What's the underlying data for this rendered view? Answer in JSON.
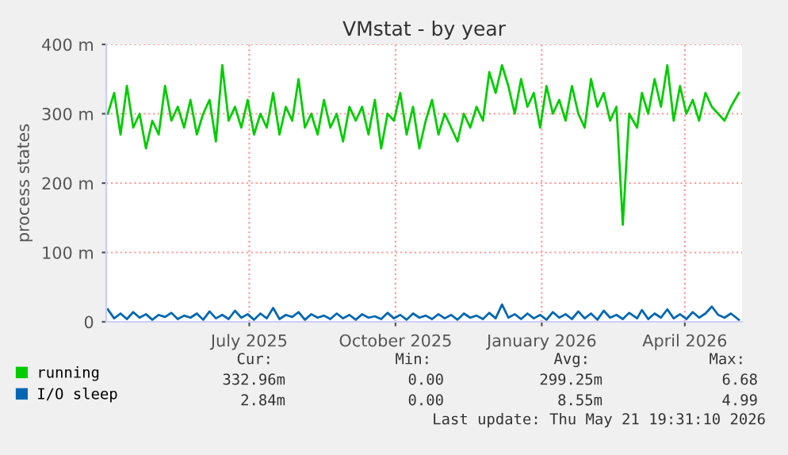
{
  "chart_data": {
    "type": "line",
    "title": "VMstat - by year",
    "ylabel": "process states",
    "x": [
      "2025-04-18",
      "2025-04-22",
      "2025-04-26",
      "2025-04-30",
      "2025-05-04",
      "2025-05-08",
      "2025-05-12",
      "2025-05-16",
      "2025-05-20",
      "2025-05-24",
      "2025-05-28",
      "2025-06-01",
      "2025-06-05",
      "2025-06-09",
      "2025-06-13",
      "2025-06-17",
      "2025-06-21",
      "2025-06-25",
      "2025-06-29",
      "2025-07-03",
      "2025-07-07",
      "2025-07-11",
      "2025-07-15",
      "2025-07-19",
      "2025-07-23",
      "2025-07-27",
      "2025-07-31",
      "2025-08-04",
      "2025-08-08",
      "2025-08-12",
      "2025-08-16",
      "2025-08-20",
      "2025-08-24",
      "2025-08-28",
      "2025-09-01",
      "2025-09-05",
      "2025-09-09",
      "2025-09-13",
      "2025-09-17",
      "2025-09-21",
      "2025-09-25",
      "2025-09-29",
      "2025-10-03",
      "2025-10-07",
      "2025-10-11",
      "2025-10-15",
      "2025-10-19",
      "2025-10-23",
      "2025-10-27",
      "2025-10-31",
      "2025-11-04",
      "2025-11-08",
      "2025-11-12",
      "2025-11-16",
      "2025-11-20",
      "2025-11-24",
      "2025-11-28",
      "2025-12-02",
      "2025-12-06",
      "2025-12-10",
      "2025-12-14",
      "2025-12-18",
      "2025-12-22",
      "2025-12-26",
      "2025-12-30",
      "2026-01-03",
      "2026-01-07",
      "2026-01-11",
      "2026-01-15",
      "2026-01-19",
      "2026-01-23",
      "2026-01-27",
      "2026-01-31",
      "2026-02-04",
      "2026-02-08",
      "2026-02-12",
      "2026-02-16",
      "2026-02-20",
      "2026-02-24",
      "2026-02-28",
      "2026-03-04",
      "2026-03-08",
      "2026-03-12",
      "2026-03-17",
      "2026-03-20",
      "2026-03-24",
      "2026-03-28",
      "2026-04-01",
      "2026-04-05",
      "2026-04-09",
      "2026-04-13",
      "2026-04-17",
      "2026-04-21",
      "2026-04-25",
      "2026-04-29",
      "2026-05-03",
      "2026-05-07",
      "2026-05-11",
      "2026-05-15",
      "2026-05-20"
    ],
    "series": [
      {
        "name": "running",
        "color": "#00cc00",
        "values": [
          300,
          330,
          270,
          340,
          280,
          300,
          250,
          290,
          270,
          340,
          290,
          310,
          280,
          320,
          270,
          300,
          320,
          260,
          370,
          290,
          310,
          280,
          320,
          270,
          300,
          280,
          330,
          270,
          310,
          290,
          350,
          280,
          300,
          270,
          320,
          280,
          300,
          260,
          310,
          290,
          310,
          270,
          320,
          250,
          300,
          290,
          330,
          270,
          310,
          250,
          290,
          320,
          270,
          300,
          280,
          260,
          300,
          280,
          310,
          290,
          360,
          330,
          370,
          340,
          300,
          350,
          310,
          330,
          280,
          340,
          300,
          320,
          290,
          340,
          300,
          280,
          350,
          310,
          330,
          290,
          310,
          140,
          300,
          280,
          330,
          300,
          350,
          310,
          370,
          290,
          340,
          300,
          320,
          290,
          330,
          310,
          300,
          290,
          310,
          330
        ]
      },
      {
        "name": "I/O sleep",
        "color": "#0066b3",
        "values": [
          18,
          5,
          12,
          4,
          14,
          6,
          11,
          3,
          10,
          7,
          13,
          4,
          9,
          6,
          12,
          3,
          15,
          5,
          10,
          4,
          16,
          6,
          11,
          3,
          12,
          5,
          20,
          4,
          10,
          7,
          14,
          3,
          11,
          6,
          9,
          4,
          12,
          5,
          10,
          3,
          11,
          6,
          8,
          4,
          13,
          5,
          10,
          3,
          12,
          6,
          9,
          4,
          11,
          5,
          10,
          3,
          12,
          6,
          9,
          4,
          13,
          5,
          25,
          6,
          11,
          4,
          12,
          5,
          10,
          3,
          14,
          6,
          11,
          4,
          15,
          5,
          12,
          3,
          16,
          6,
          10,
          4,
          13,
          5,
          17,
          4,
          12,
          6,
          18,
          5,
          11,
          4,
          14,
          6,
          12,
          22,
          10,
          6,
          12,
          3
        ]
      }
    ],
    "xlim": [
      "2025-04-17",
      "2026-05-22"
    ],
    "xticks": [
      {
        "value": "2025-07-16",
        "label": "July 2025"
      },
      {
        "value": "2025-10-16",
        "label": "October 2025"
      },
      {
        "value": "2026-01-16",
        "label": "January 2026"
      },
      {
        "value": "2026-04-16",
        "label": "April 2026"
      }
    ],
    "ylim": [
      0,
      400
    ],
    "yticks": [
      0,
      {
        "value": 100,
        "label": "100 m"
      },
      {
        "value": 200,
        "label": "200 m"
      },
      {
        "value": 300,
        "label": "300 m"
      },
      {
        "value": 400,
        "label": "400 m"
      }
    ],
    "grid": true,
    "legend": "bottom left",
    "annotations": [
      "Cur:",
      "Min:",
      "Avg:",
      "Max:",
      "332.96m",
      "0.00",
      "299.25m",
      "6.68",
      "2.84m",
      "0.00",
      "8.55m",
      "4.99",
      "Last update: Thu May 21 19:31:10 2026"
    ]
  }
}
